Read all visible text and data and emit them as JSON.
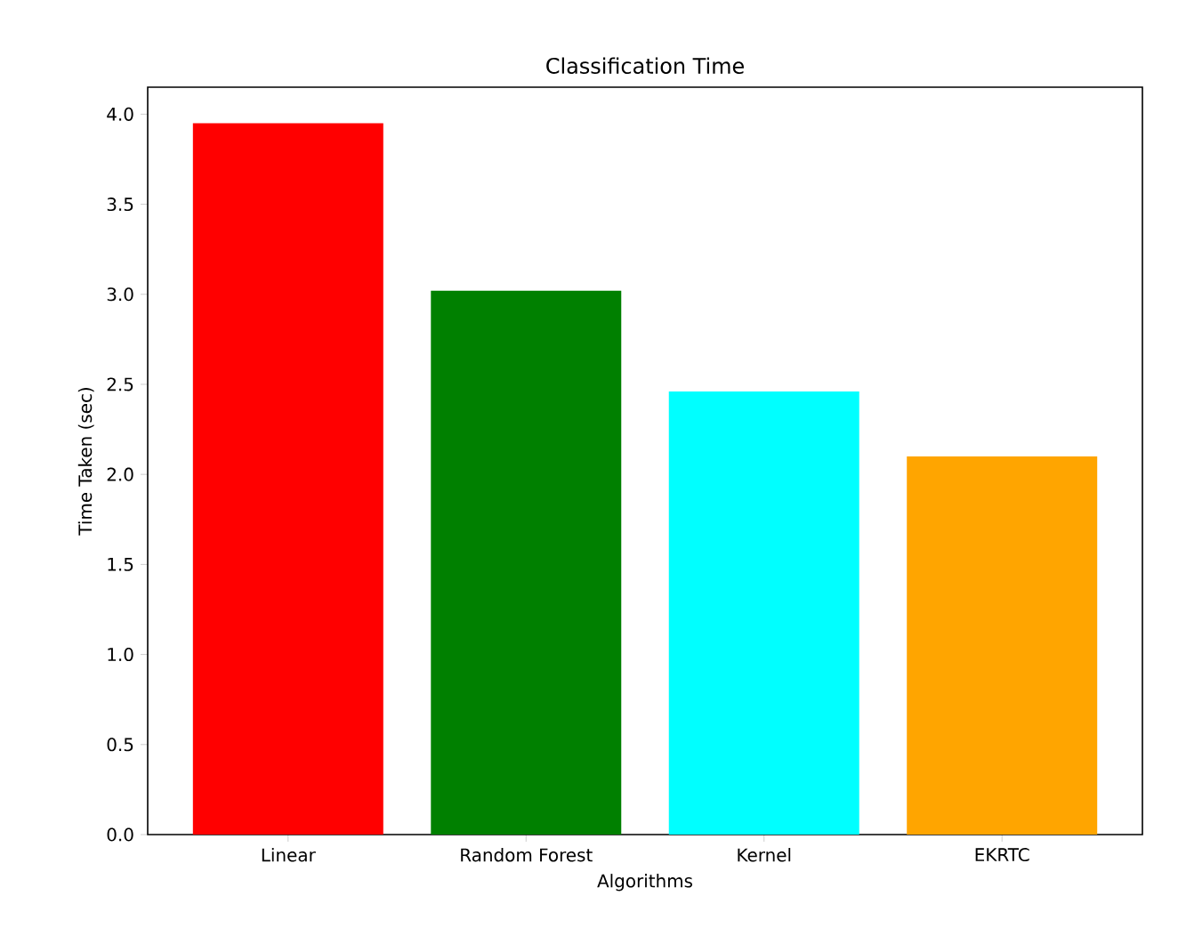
{
  "chart_data": {
    "type": "bar",
    "title": "Classification Time",
    "xlabel": "Algorithms",
    "ylabel": "Time Taken (sec)",
    "categories": [
      "Linear",
      "Random Forest",
      "Kernel",
      "EKRTC"
    ],
    "values": [
      3.95,
      3.02,
      2.46,
      2.1
    ],
    "colors": [
      "#ff0000",
      "#008000",
      "#00ffff",
      "#ffa500"
    ],
    "ylim": [
      0,
      4.15
    ],
    "yticks": [
      {
        "value": 0,
        "label": "0.0"
      },
      {
        "value": 0.5,
        "label": "0.5"
      },
      {
        "value": 1,
        "label": "1.0"
      },
      {
        "value": 1.5,
        "label": "1.5"
      },
      {
        "value": 2,
        "label": "2.0"
      },
      {
        "value": 2.5,
        "label": "2.5"
      },
      {
        "value": 3,
        "label": "3.0"
      },
      {
        "value": 3.5,
        "label": "3.5"
      },
      {
        "value": 4,
        "label": "4.0"
      }
    ],
    "grid": false
  }
}
